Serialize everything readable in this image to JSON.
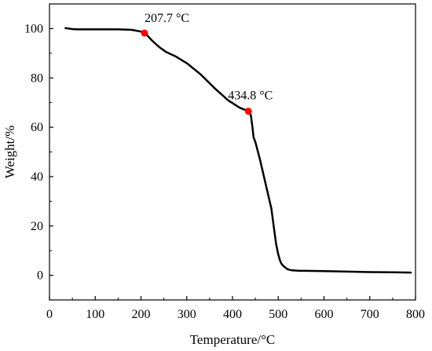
{
  "chart_data": {
    "type": "line",
    "title": "",
    "xlabel": "Temperature/°C",
    "ylabel": "Weight/%",
    "xlim": [
      0,
      800
    ],
    "ylim": [
      -10,
      110
    ],
    "xticks": [
      0,
      100,
      200,
      300,
      400,
      500,
      600,
      700,
      800
    ],
    "yticks": [
      0,
      20,
      40,
      60,
      80,
      100
    ],
    "grid": false,
    "legend": "none",
    "line_color": "#000000",
    "marker_color": "#ff0000",
    "series": [
      {
        "x": [
          35,
          50,
          60,
          80,
          100,
          150,
          180,
          200,
          207.7,
          215,
          225,
          240,
          255,
          275,
          300,
          330,
          360,
          390,
          415,
          434.8,
          440,
          443,
          446,
          450,
          455,
          460,
          465,
          470,
          475,
          480,
          485,
          490,
          495,
          500,
          503,
          506,
          510,
          515,
          520,
          525,
          530,
          540,
          550,
          560,
          600,
          650,
          700,
          750,
          790
        ],
        "y": [
          100.2,
          99.8,
          99.7,
          99.7,
          99.7,
          99.7,
          99.5,
          98.8,
          98.2,
          97,
          95,
          92.5,
          90.5,
          88.8,
          86,
          81.5,
          76,
          71,
          68,
          66.5,
          65,
          61,
          56,
          54,
          50.5,
          47,
          43,
          39,
          35,
          31,
          27,
          20,
          13,
          8.5,
          6.5,
          5,
          4,
          3.2,
          2.5,
          2.2,
          2,
          1.9,
          1.8,
          1.8,
          1.7,
          1.5,
          1.3,
          1.2,
          1.1
        ]
      }
    ],
    "annotations": [
      {
        "x": 207.7,
        "y": 98.2,
        "text": "207.7 °C"
      },
      {
        "x": 434.8,
        "y": 66.5,
        "text": "434.8 °C"
      }
    ]
  }
}
